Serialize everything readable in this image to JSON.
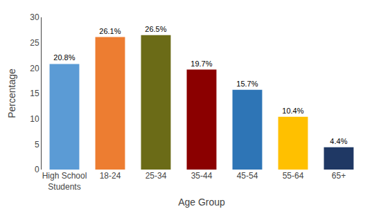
{
  "chart_data": {
    "type": "bar",
    "categories": [
      "High School\nStudents",
      "18-24",
      "25-34",
      "35-44",
      "45-54",
      "55-64",
      "65+"
    ],
    "values": [
      20.8,
      26.1,
      26.5,
      19.7,
      15.7,
      10.4,
      4.4
    ],
    "value_labels": [
      "20.8%",
      "26.1%",
      "26.5%",
      "19.7%",
      "15.7%",
      "10.4%",
      "4.4%"
    ],
    "data_labels": true,
    "colors": [
      "#5B9BD5",
      "#ED7D31",
      "#6B6B17",
      "#8B0000",
      "#2E75B6",
      "#FFC000",
      "#1F3864"
    ],
    "xlabel": "Age Group",
    "ylabel": "Percentage",
    "ylim": [
      0,
      30
    ],
    "yticks": [
      0,
      5,
      10,
      15,
      20,
      25,
      30
    ],
    "grid": false
  }
}
